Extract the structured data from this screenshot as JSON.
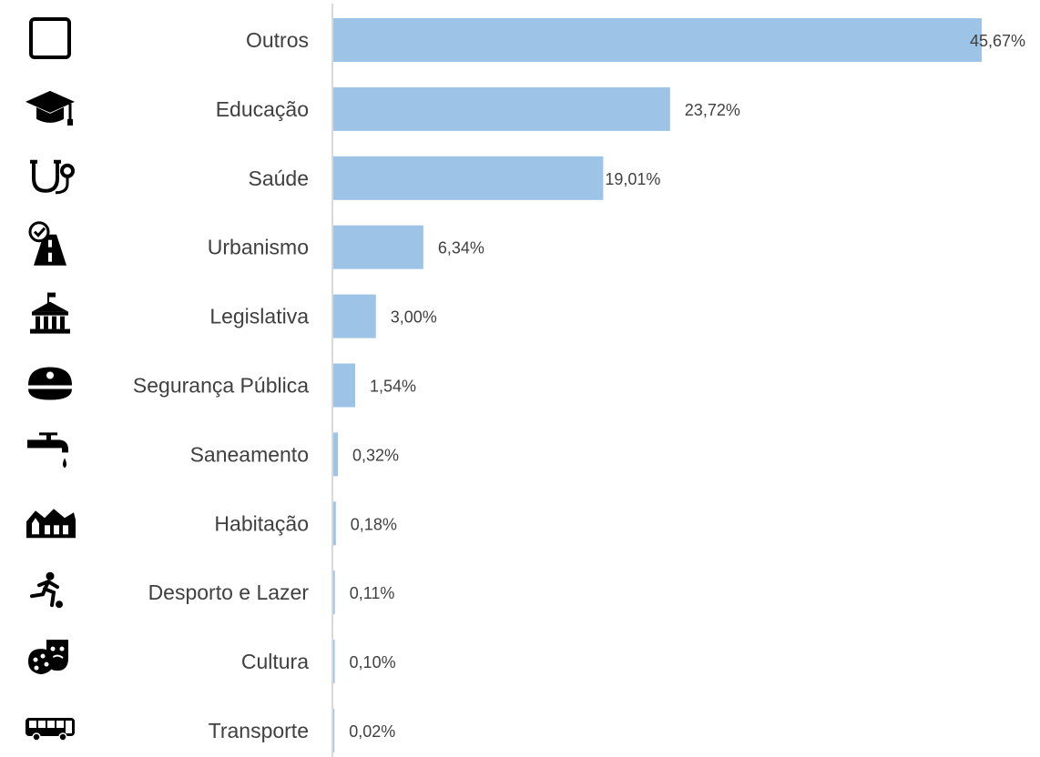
{
  "chart_data": {
    "type": "bar",
    "orientation": "horizontal",
    "title": "",
    "xlabel": "",
    "ylabel": "",
    "xlim": [
      0,
      45.67
    ],
    "grid": false,
    "legend": "none",
    "bar_color": "#9dc3e6",
    "categories": [
      {
        "label": "Outros",
        "value": 45.67,
        "value_label": "45,67%",
        "icon": "empty-square-icon"
      },
      {
        "label": "Educação",
        "value": 23.72,
        "value_label": "23,72%",
        "icon": "graduation-cap-icon"
      },
      {
        "label": "Saúde",
        "value": 19.01,
        "value_label": "19,01%",
        "icon": "stethoscope-icon"
      },
      {
        "label": "Urbanismo",
        "value": 6.34,
        "value_label": "6,34%",
        "icon": "road-icon"
      },
      {
        "label": "Legislativa",
        "value": 3.0,
        "value_label": "3,00%",
        "icon": "government-building-icon"
      },
      {
        "label": "Segurança Pública",
        "value": 1.54,
        "value_label": "1,54%",
        "icon": "police-cap-icon"
      },
      {
        "label": "Saneamento",
        "value": 0.32,
        "value_label": "0,32%",
        "icon": "water-tap-icon"
      },
      {
        "label": "Habitação",
        "value": 0.18,
        "value_label": "0,18%",
        "icon": "houses-icon"
      },
      {
        "label": "Desporto e Lazer",
        "value": 0.11,
        "value_label": "0,11%",
        "icon": "football-player-icon"
      },
      {
        "label": "Cultura",
        "value": 0.1,
        "value_label": "0,10%",
        "icon": "theater-masks-icon"
      },
      {
        "label": "Transporte",
        "value": 0.02,
        "value_label": "0,02%",
        "icon": "bus-icon"
      }
    ]
  }
}
